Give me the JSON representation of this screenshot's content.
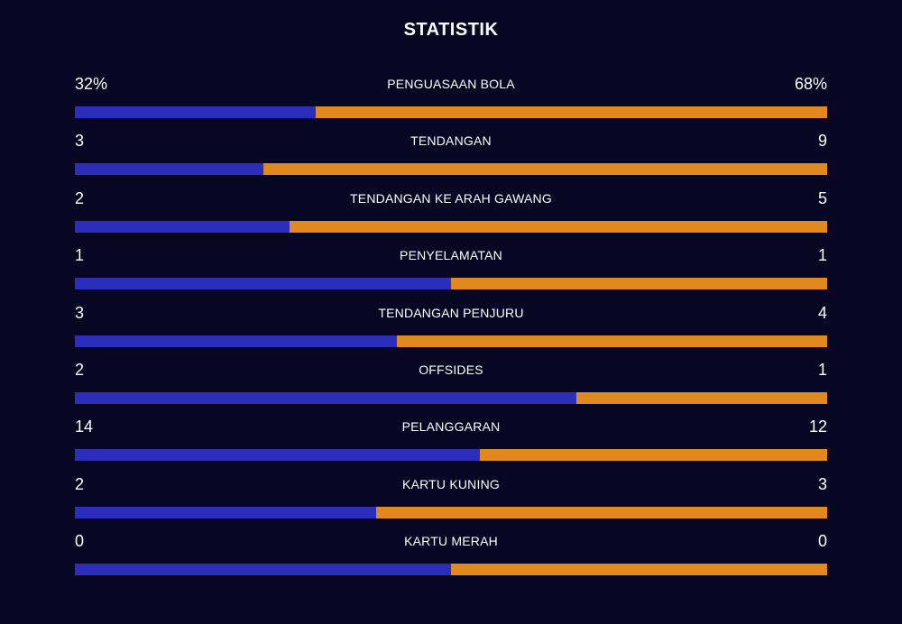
{
  "title": "STATISTIK",
  "colors": {
    "background": "#080723",
    "home_bar": "#2b2ebb",
    "away_bar": "#e1891d",
    "text": "#ffffff"
  },
  "stats": [
    {
      "label": "PENGUASAAN BOLA",
      "home": "32%",
      "away": "68%",
      "home_share": 0.32
    },
    {
      "label": "TENDANGAN",
      "home": "3",
      "away": "9",
      "home_share": 0.25
    },
    {
      "label": "TENDANGAN KE ARAH GAWANG",
      "home": "2",
      "away": "5",
      "home_share": 0.2857
    },
    {
      "label": "PENYELAMATAN",
      "home": "1",
      "away": "1",
      "home_share": 0.5
    },
    {
      "label": "TENDANGAN PENJURU",
      "home": "3",
      "away": "4",
      "home_share": 0.4286
    },
    {
      "label": "OFFSIDES",
      "home": "2",
      "away": "1",
      "home_share": 0.6667
    },
    {
      "label": "PELANGGARAN",
      "home": "14",
      "away": "12",
      "home_share": 0.5385
    },
    {
      "label": "KARTU KUNING",
      "home": "2",
      "away": "3",
      "home_share": 0.4
    },
    {
      "label": "KARTU MERAH",
      "home": "0",
      "away": "0",
      "home_share": 0.5
    }
  ]
}
